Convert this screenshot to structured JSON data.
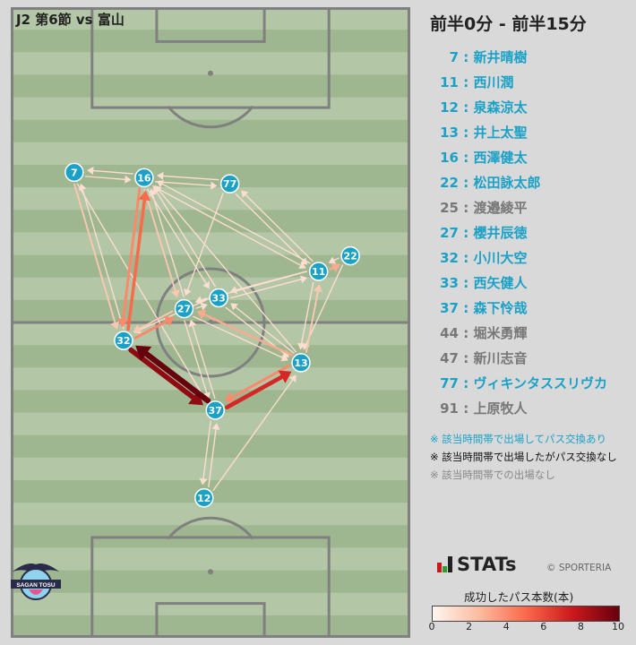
{
  "match_title": "J2 第6節 vs 富山",
  "time_range": "前半0分 - 前半15分",
  "players": [
    {
      "num": "7",
      "name": "新井晴樹",
      "status": "played"
    },
    {
      "num": "11",
      "name": "西川潤",
      "status": "played"
    },
    {
      "num": "12",
      "name": "泉森涼太",
      "status": "played"
    },
    {
      "num": "13",
      "name": "井上太聖",
      "status": "played"
    },
    {
      "num": "16",
      "name": "西澤健太",
      "status": "played"
    },
    {
      "num": "22",
      "name": "松田詠太郎",
      "status": "played"
    },
    {
      "num": "25",
      "name": "渡邉綾平",
      "status": "none"
    },
    {
      "num": "27",
      "name": "櫻井辰徳",
      "status": "played"
    },
    {
      "num": "32",
      "name": "小川大空",
      "status": "played"
    },
    {
      "num": "33",
      "name": "西矢健人",
      "status": "played"
    },
    {
      "num": "37",
      "name": "森下怜哉",
      "status": "played"
    },
    {
      "num": "44",
      "name": "堀米勇輝",
      "status": "none"
    },
    {
      "num": "47",
      "name": "新川志音",
      "status": "none"
    },
    {
      "num": "77",
      "name": "ヴィキンタススリヴカ",
      "status": "played"
    },
    {
      "num": "91",
      "name": "上原牧人",
      "status": "none"
    }
  ],
  "notes": {
    "on": "※ 該当時間帯で出場してパス交換あり",
    "nopass": "※ 該当時間帯で出場したがパス交換なし",
    "none": "※ 該当時間帯での出場なし"
  },
  "brand": "STATs",
  "copyright": "© SPORTERIA",
  "team_logo_text": "SAGAN TOSU",
  "legend": {
    "title": "成功したパス本数(本)",
    "ticks": [
      "0",
      "2",
      "4",
      "6",
      "8",
      "10"
    ],
    "min": 0,
    "max": 10
  },
  "colors": {
    "node": "#1aa1c7",
    "pitch_light": "#b3c7a6",
    "pitch_dark": "#9fb791",
    "line": "#808080",
    "scale": [
      "#fff5f0",
      "#fcbba1",
      "#fb6a4a",
      "#cb181d",
      "#67000d"
    ]
  },
  "chart_data": {
    "type": "network",
    "pitch": {
      "length": 105,
      "width": 68
    },
    "nodes": [
      {
        "id": "7",
        "x": 10.8,
        "y": 77.5
      },
      {
        "id": "16",
        "x": 22.7,
        "y": 76.6
      },
      {
        "id": "77",
        "x": 37.3,
        "y": 75.6
      },
      {
        "id": "22",
        "x": 57.8,
        "y": 63.6
      },
      {
        "id": "11",
        "x": 52.4,
        "y": 61.0
      },
      {
        "id": "33",
        "x": 35.4,
        "y": 56.6
      },
      {
        "id": "27",
        "x": 29.5,
        "y": 54.8
      },
      {
        "id": "32",
        "x": 19.2,
        "y": 49.5
      },
      {
        "id": "13",
        "x": 49.4,
        "y": 45.8
      },
      {
        "id": "37",
        "x": 34.8,
        "y": 37.9
      },
      {
        "id": "12",
        "x": 32.9,
        "y": 23.3
      }
    ],
    "edges": [
      {
        "from": "32",
        "to": "37",
        "count": 9
      },
      {
        "from": "37",
        "to": "32",
        "count": 10
      },
      {
        "from": "37",
        "to": "13",
        "count": 7
      },
      {
        "from": "13",
        "to": "37",
        "count": 4
      },
      {
        "from": "32",
        "to": "16",
        "count": 5
      },
      {
        "from": "16",
        "to": "32",
        "count": 4
      },
      {
        "from": "32",
        "to": "27",
        "count": 4
      },
      {
        "from": "27",
        "to": "32",
        "count": 2
      },
      {
        "from": "7",
        "to": "32",
        "count": 2
      },
      {
        "from": "32",
        "to": "7",
        "count": 1
      },
      {
        "from": "11",
        "to": "22",
        "count": 3
      },
      {
        "from": "22",
        "to": "11",
        "count": 1
      },
      {
        "from": "13",
        "to": "27",
        "count": 3
      },
      {
        "from": "27",
        "to": "13",
        "count": 1
      },
      {
        "from": "13",
        "to": "11",
        "count": 2
      },
      {
        "from": "11",
        "to": "13",
        "count": 1
      },
      {
        "from": "16",
        "to": "27",
        "count": 2
      },
      {
        "from": "27",
        "to": "16",
        "count": 1
      },
      {
        "from": "16",
        "to": "7",
        "count": 1
      },
      {
        "from": "7",
        "to": "16",
        "count": 1
      },
      {
        "from": "16",
        "to": "77",
        "count": 1
      },
      {
        "from": "77",
        "to": "16",
        "count": 1
      },
      {
        "from": "16",
        "to": "11",
        "count": 1
      },
      {
        "from": "11",
        "to": "16",
        "count": 1
      },
      {
        "from": "77",
        "to": "11",
        "count": 1
      },
      {
        "from": "11",
        "to": "77",
        "count": 1
      },
      {
        "from": "33",
        "to": "16",
        "count": 1
      },
      {
        "from": "16",
        "to": "33",
        "count": 1
      },
      {
        "from": "33",
        "to": "11",
        "count": 1
      },
      {
        "from": "11",
        "to": "33",
        "count": 1
      },
      {
        "from": "27",
        "to": "33",
        "count": 1
      },
      {
        "from": "33",
        "to": "27",
        "count": 1
      },
      {
        "from": "33",
        "to": "13",
        "count": 1
      },
      {
        "from": "33",
        "to": "32",
        "count": 1
      },
      {
        "from": "13",
        "to": "16",
        "count": 1
      },
      {
        "from": "77",
        "to": "27",
        "count": 1
      },
      {
        "from": "7",
        "to": "37",
        "count": 1
      },
      {
        "from": "12",
        "to": "37",
        "count": 1
      },
      {
        "from": "37",
        "to": "12",
        "count": 1
      },
      {
        "from": "12",
        "to": "13",
        "count": 1
      },
      {
        "from": "37",
        "to": "27",
        "count": 1
      },
      {
        "from": "27",
        "to": "37",
        "count": 1
      },
      {
        "from": "22",
        "to": "13",
        "count": 1
      },
      {
        "from": "11",
        "to": "27",
        "count": 1
      },
      {
        "from": "13",
        "to": "33",
        "count": 1
      }
    ]
  }
}
